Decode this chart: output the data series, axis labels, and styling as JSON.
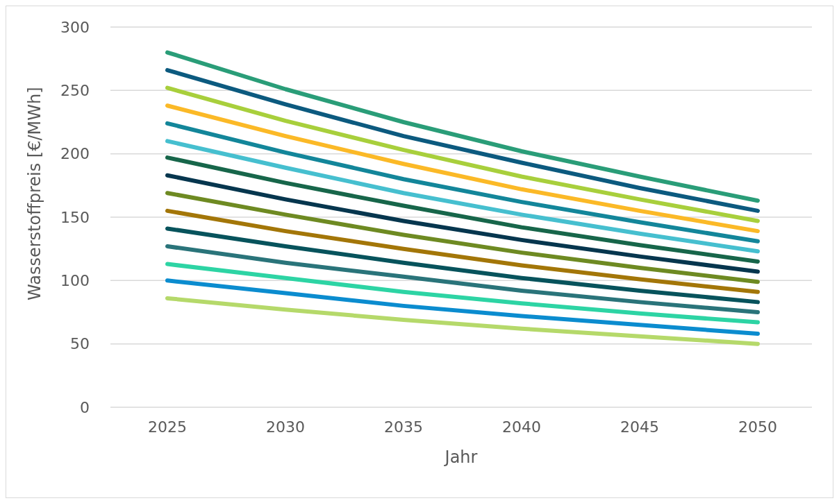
{
  "chart_data": {
    "type": "line",
    "xlabel": "Jahr",
    "ylabel": "Wasserstoffpreis [€/MWh]",
    "categories": [
      "2025",
      "2030",
      "2035",
      "2040",
      "2045",
      "2050"
    ],
    "ylim": [
      0,
      300
    ],
    "yticks": [
      0,
      50,
      100,
      150,
      200,
      250,
      300
    ],
    "grid": "y",
    "legend": false,
    "marker": "none",
    "line_style": "solid",
    "series": [
      {
        "color": "#2a9d78",
        "values": [
          280,
          251,
          225,
          202,
          182,
          163
        ]
      },
      {
        "color": "#0c5a7f",
        "values": [
          266,
          239,
          214,
          193,
          173,
          155
        ]
      },
      {
        "color": "#a8cf3c",
        "values": [
          252,
          226,
          203,
          182,
          164,
          147
        ]
      },
      {
        "color": "#fbb927",
        "values": [
          238,
          214,
          192,
          172,
          155,
          139
        ]
      },
      {
        "color": "#13869a",
        "values": [
          224,
          201,
          180,
          162,
          146,
          131
        ]
      },
      {
        "color": "#46bfcf",
        "values": [
          210,
          189,
          169,
          152,
          137,
          123
        ]
      },
      {
        "color": "#17664a",
        "values": [
          197,
          177,
          159,
          142,
          128,
          115
        ]
      },
      {
        "color": "#06364e",
        "values": [
          183,
          164,
          147,
          132,
          119,
          107
        ]
      },
      {
        "color": "#6e8a22",
        "values": [
          169,
          152,
          136,
          122,
          110,
          99
        ]
      },
      {
        "color": "#a37608",
        "values": [
          155,
          139,
          125,
          112,
          101,
          91
        ]
      },
      {
        "color": "#07535c",
        "values": [
          141,
          127,
          114,
          102,
          92,
          83
        ]
      },
      {
        "color": "#2a747a",
        "values": [
          127,
          114,
          103,
          92,
          83,
          75
        ]
      },
      {
        "color": "#2dd4a4",
        "values": [
          113,
          102,
          91,
          82,
          74,
          67
        ]
      },
      {
        "color": "#0b8ccf",
        "values": [
          100,
          90,
          80,
          72,
          65,
          58
        ]
      },
      {
        "color": "#b5d96a",
        "values": [
          86,
          77,
          69,
          62,
          56,
          50
        ]
      }
    ]
  }
}
